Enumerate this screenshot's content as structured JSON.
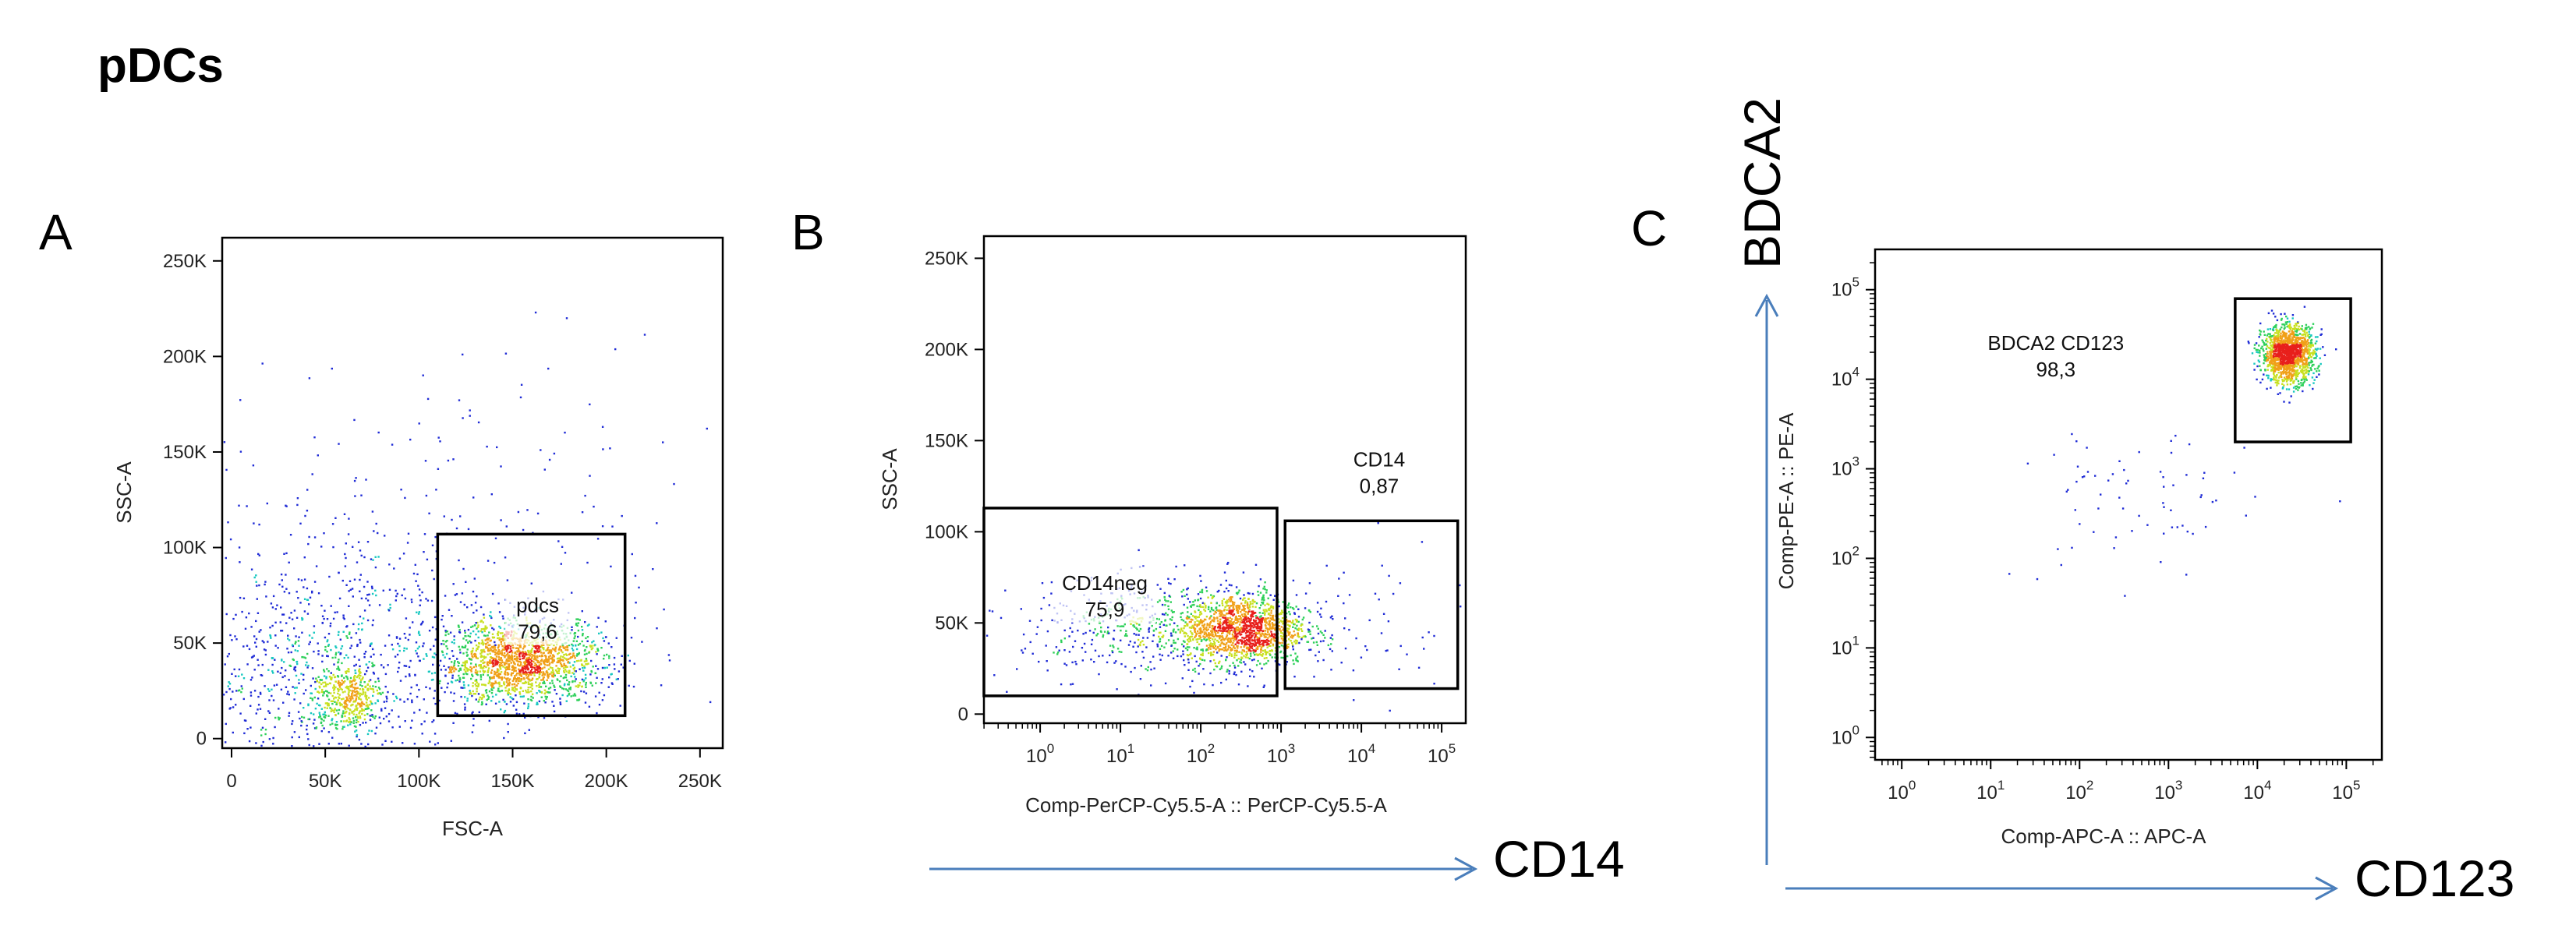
{
  "title": "pDCs",
  "colors": {
    "arrow": "#4a7ebb",
    "density": [
      "#1f2bd6",
      "#1f8fe0",
      "#18c8c0",
      "#2ed05a",
      "#c8e020",
      "#f0a018",
      "#e8201c"
    ]
  },
  "chart_data": [
    {
      "panel": "A",
      "type": "scatter",
      "xlabel": "FSC-A",
      "ylabel": "SSC-A",
      "xscale": "linear",
      "yscale": "linear",
      "xlim": [
        -5000,
        262144
      ],
      "ylim": [
        -5000,
        262144
      ],
      "xticks": [
        {
          "v": 0,
          "label": "0"
        },
        {
          "v": 50000,
          "label": "50K"
        },
        {
          "v": 100000,
          "label": "100K"
        },
        {
          "v": 150000,
          "label": "150K"
        },
        {
          "v": 200000,
          "label": "200K"
        },
        {
          "v": 250000,
          "label": "250K"
        }
      ],
      "yticks": [
        {
          "v": 0,
          "label": "0"
        },
        {
          "v": 50000,
          "label": "50K"
        },
        {
          "v": 100000,
          "label": "100K"
        },
        {
          "v": 150000,
          "label": "150K"
        },
        {
          "v": 200000,
          "label": "200K"
        },
        {
          "v": 250000,
          "label": "250K"
        }
      ],
      "gates": [
        {
          "name": "pdcs",
          "percent": "79,6",
          "x": [
            110000,
            210000
          ],
          "y": [
            12000,
            107000
          ]
        }
      ],
      "populations": [
        {
          "cx": 155000,
          "cy": 40000,
          "sx": 22000,
          "sy": 11000,
          "n": 1700
        },
        {
          "cx": 62000,
          "cy": 22000,
          "sx": 10000,
          "sy": 9000,
          "n": 420
        },
        {
          "cx": 45000,
          "cy": 40000,
          "sx": 40000,
          "sy": 32000,
          "n": 850
        },
        {
          "cx": 120000,
          "cy": 90000,
          "sx": 70000,
          "sy": 55000,
          "n": 230
        }
      ]
    },
    {
      "panel": "B",
      "type": "scatter",
      "xlabel": "Comp-PerCP-Cy5.5-A :: PerCP-Cy5.5-A",
      "ylabel": "SSC-A",
      "xscale": "log",
      "yscale": "linear",
      "xlim": [
        -0.7,
        5.3
      ],
      "ylim": [
        -5000,
        262144
      ],
      "xticks": [
        {
          "v": 0,
          "base": "10",
          "exp": "0"
        },
        {
          "v": 1,
          "base": "10",
          "exp": "1"
        },
        {
          "v": 2,
          "base": "10",
          "exp": "2"
        },
        {
          "v": 3,
          "base": "10",
          "exp": "3"
        },
        {
          "v": 4,
          "base": "10",
          "exp": "4"
        },
        {
          "v": 5,
          "base": "10",
          "exp": "5"
        }
      ],
      "yticks": [
        {
          "v": 0,
          "label": "0"
        },
        {
          "v": 50000,
          "label": "50K"
        },
        {
          "v": 100000,
          "label": "100K"
        },
        {
          "v": 150000,
          "label": "150K"
        },
        {
          "v": 200000,
          "label": "200K"
        },
        {
          "v": 250000,
          "label": "250K"
        }
      ],
      "gates": [
        {
          "name": "CD14neg",
          "percent": "75,9",
          "x": [
            -0.7,
            2.95
          ],
          "y": [
            10000,
            113000
          ]
        },
        {
          "name": "CD14",
          "percent": "0,87",
          "x": [
            3.05,
            5.2
          ],
          "y": [
            14000,
            106000
          ]
        }
      ],
      "populations": [
        {
          "cx": 2.55,
          "cy": 46000,
          "sx": 0.38,
          "sy": 10000,
          "n": 1300
        },
        {
          "cx": 1.6,
          "cy": 47000,
          "sx": 0.9,
          "sy": 13000,
          "n": 650
        },
        {
          "cx": 4.1,
          "cy": 50000,
          "sx": 0.6,
          "sy": 20000,
          "n": 45
        }
      ]
    },
    {
      "panel": "C",
      "type": "scatter",
      "xlabel": "Comp-APC-A :: APC-A",
      "ylabel": "Comp-PE-A :: PE-A",
      "xscale": "log",
      "yscale": "log",
      "xlim": [
        -0.3,
        5.4
      ],
      "ylim": [
        -0.25,
        5.45
      ],
      "xticks": [
        {
          "v": 0,
          "base": "10",
          "exp": "0"
        },
        {
          "v": 1,
          "base": "10",
          "exp": "1"
        },
        {
          "v": 2,
          "base": "10",
          "exp": "2"
        },
        {
          "v": 3,
          "base": "10",
          "exp": "3"
        },
        {
          "v": 4,
          "base": "10",
          "exp": "4"
        },
        {
          "v": 5,
          "base": "10",
          "exp": "5"
        }
      ],
      "yticks": [
        {
          "v": 0,
          "base": "10",
          "exp": "0"
        },
        {
          "v": 1,
          "base": "10",
          "exp": "1"
        },
        {
          "v": 2,
          "base": "10",
          "exp": "2"
        },
        {
          "v": 3,
          "base": "10",
          "exp": "3"
        },
        {
          "v": 4,
          "base": "10",
          "exp": "4"
        },
        {
          "v": 5,
          "base": "10",
          "exp": "5"
        }
      ],
      "gates": [
        {
          "name": "BDCA2 CD123",
          "percent": "98,3",
          "x": [
            3.75,
            5.05
          ],
          "y": [
            3.3,
            4.9
          ]
        }
      ],
      "populations": [
        {
          "cx": 4.35,
          "cy": 4.28,
          "sx": 0.15,
          "sy": 0.16,
          "n": 1400
        },
        {
          "cx": 2.6,
          "cy": 2.6,
          "sx": 0.65,
          "sy": 0.45,
          "n": 70
        }
      ]
    }
  ],
  "markers": {
    "panel_b_x": "CD14",
    "panel_c_x": "CD123",
    "panel_c_y": "BDCA2"
  }
}
